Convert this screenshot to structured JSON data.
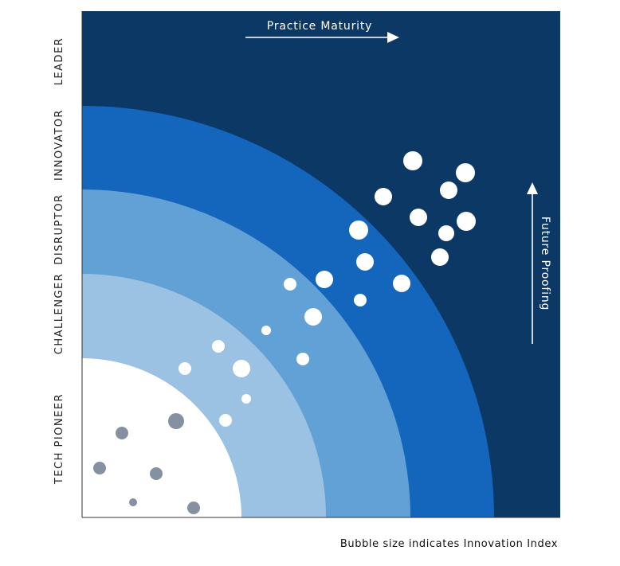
{
  "chart_data": {
    "type": "scatter",
    "title": "",
    "xlabel": "",
    "ylabel": "",
    "xlim": [
      0,
      600
    ],
    "ylim": [
      0,
      636
    ],
    "grid": false,
    "legend": "none",
    "colors": {
      "background": "#0c3866",
      "band_innovator": "#1366bb",
      "band_disruptor": "#61a1d6",
      "band_challenger": "#9bc1e3",
      "band_tech_pioneer": "#ffffff",
      "bubble_light": "#ffffff",
      "bubble_dark": "#8591a0"
    },
    "tiers": [
      {
        "name": "band_tech_pioneer",
        "label": "TECH PIONEER",
        "radius": 200
      },
      {
        "name": "band_challenger",
        "label": "CHALLENGER",
        "radius": 306
      },
      {
        "name": "band_disruptor",
        "label": "DISRUPTOR",
        "radius": 412
      },
      {
        "name": "band_innovator",
        "label": "INNOVATOR",
        "radius": 517
      },
      {
        "name": "background",
        "label": "LEADER",
        "radius": null
      }
    ],
    "annotations": {
      "x_arrow": "Practice Maturity",
      "y_arrow": "Future Proofing",
      "footnote": "Bubble size indicates Innovation Index"
    },
    "series": [
      {
        "values": [
          {
            "x": 22,
            "y": 62,
            "size": 8,
            "tone": "dark"
          },
          {
            "x": 50,
            "y": 106,
            "size": 8,
            "tone": "dark"
          },
          {
            "x": 93,
            "y": 55,
            "size": 8,
            "tone": "dark"
          },
          {
            "x": 64,
            "y": 19,
            "size": 5,
            "tone": "dark"
          },
          {
            "x": 118,
            "y": 121,
            "size": 10,
            "tone": "dark"
          },
          {
            "x": 140,
            "y": 12,
            "size": 8,
            "tone": "dark"
          },
          {
            "x": 129,
            "y": 187,
            "size": 8,
            "tone": "light"
          },
          {
            "x": 171,
            "y": 215,
            "size": 8,
            "tone": "light"
          },
          {
            "x": 180,
            "y": 122,
            "size": 8,
            "tone": "light"
          },
          {
            "x": 200,
            "y": 187,
            "size": 11,
            "tone": "light"
          },
          {
            "x": 206,
            "y": 149,
            "size": 6,
            "tone": "light"
          },
          {
            "x": 231,
            "y": 235,
            "size": 6,
            "tone": "light"
          },
          {
            "x": 277,
            "y": 199,
            "size": 8,
            "tone": "light"
          },
          {
            "x": 290,
            "y": 252,
            "size": 11,
            "tone": "light"
          },
          {
            "x": 261,
            "y": 293,
            "size": 8,
            "tone": "light"
          },
          {
            "x": 304,
            "y": 299,
            "size": 11,
            "tone": "light"
          },
          {
            "x": 349,
            "y": 273,
            "size": 8,
            "tone": "light"
          },
          {
            "x": 355,
            "y": 321,
            "size": 11,
            "tone": "light"
          },
          {
            "x": 347,
            "y": 361,
            "size": 12,
            "tone": "light"
          },
          {
            "x": 401,
            "y": 294,
            "size": 11,
            "tone": "light"
          },
          {
            "x": 449,
            "y": 327,
            "size": 11,
            "tone": "light"
          },
          {
            "x": 457,
            "y": 357,
            "size": 10,
            "tone": "light"
          },
          {
            "x": 482,
            "y": 372,
            "size": 12,
            "tone": "light"
          },
          {
            "x": 422,
            "y": 377,
            "size": 11,
            "tone": "light"
          },
          {
            "x": 378,
            "y": 403,
            "size": 11,
            "tone": "light"
          },
          {
            "x": 460,
            "y": 411,
            "size": 11,
            "tone": "light"
          },
          {
            "x": 415,
            "y": 448,
            "size": 12,
            "tone": "light"
          },
          {
            "x": 481,
            "y": 433,
            "size": 12,
            "tone": "light"
          }
        ]
      }
    ]
  }
}
